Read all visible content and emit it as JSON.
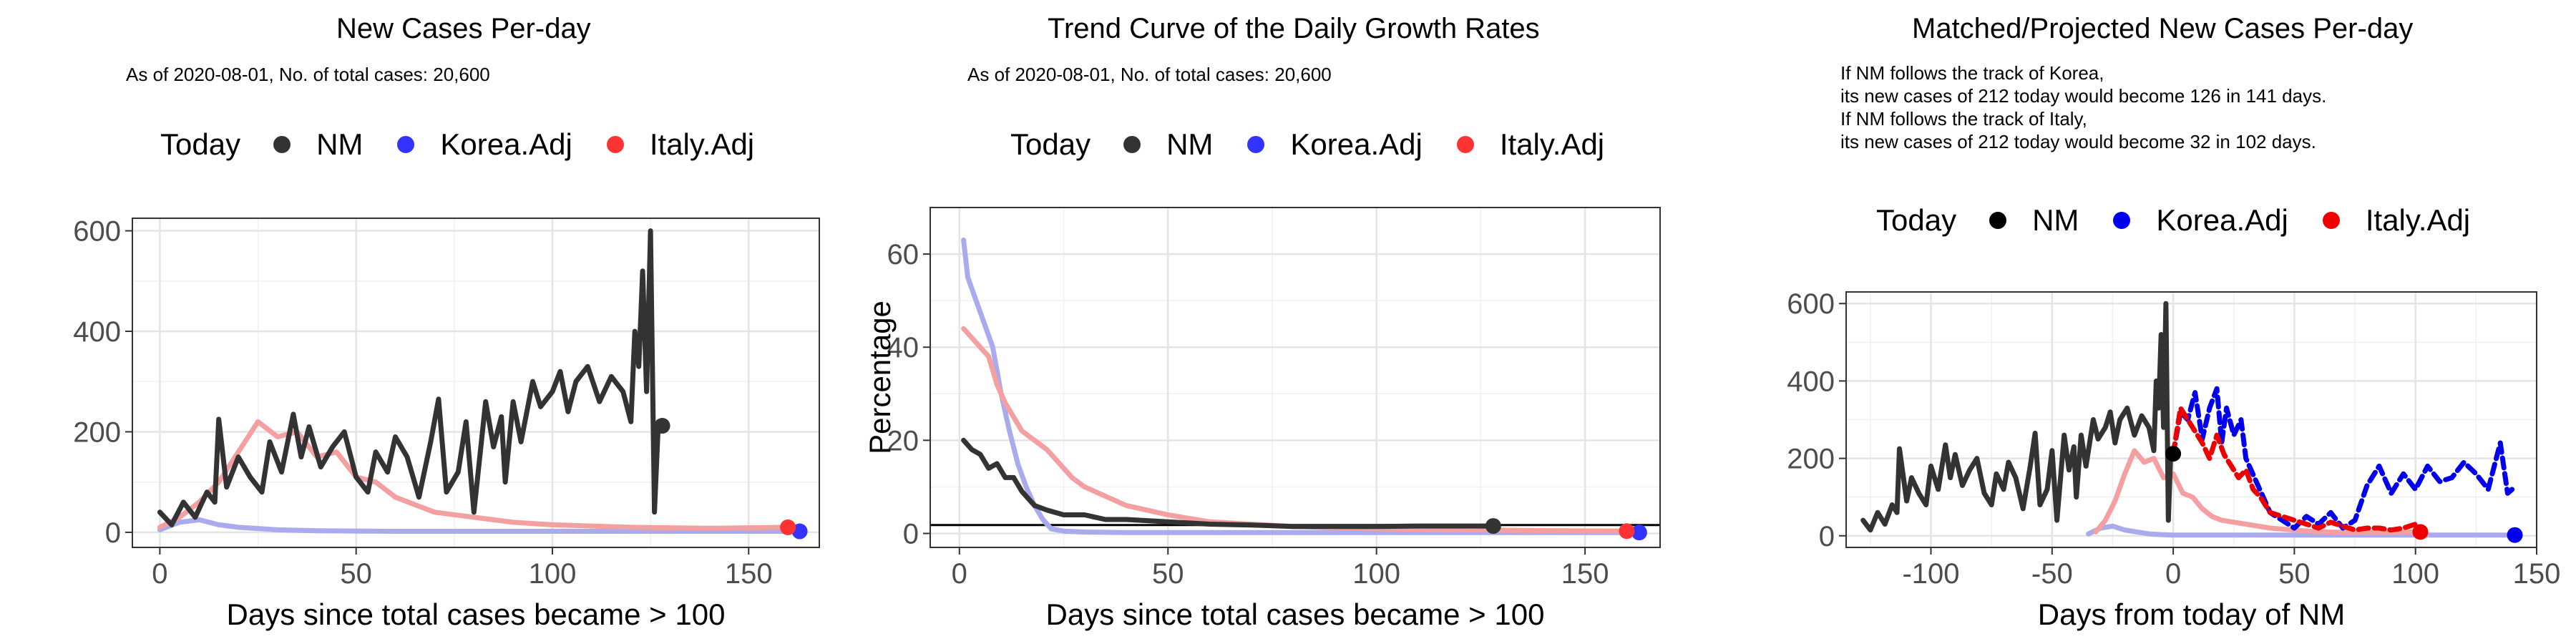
{
  "charts": [
    {
      "title": "New Cases Per-day",
      "subtitle": "As of 2020-08-01, No. of total cases: 20,600",
      "legend": {
        "title": "Today",
        "items": [
          {
            "label": "NM",
            "color": "#333333"
          },
          {
            "label": "Korea.Adj",
            "color": "#3333ff"
          },
          {
            "label": "Italy.Adj",
            "color": "#ff3333"
          }
        ]
      },
      "xlabel": "Days since total cases became > 100",
      "ylabel": "",
      "xticks": [
        0,
        50,
        100,
        150
      ],
      "yticks": [
        0,
        200,
        400,
        600
      ]
    },
    {
      "title": "Trend Curve of the Daily Growth Rates",
      "subtitle": "As of 2020-08-01, No. of total cases: 20,600",
      "legend": {
        "title": "Today",
        "items": [
          {
            "label": "NM",
            "color": "#333333"
          },
          {
            "label": "Korea.Adj",
            "color": "#3333ff"
          },
          {
            "label": "Italy.Adj",
            "color": "#ff3333"
          }
        ]
      },
      "xlabel": "Days since total cases became > 100",
      "ylabel": "Percentage",
      "xticks": [
        0,
        50,
        100,
        150
      ],
      "yticks": [
        0,
        20,
        40,
        60
      ]
    },
    {
      "title": "Matched/Projected New Cases Per-day",
      "subtitle": "If NM follows the track of Korea,\nits new cases of 212 today would become 126 in 141 days.\nIf NM follows the track of Italy,\nits new cases of 212 today would become 32 in 102 days.",
      "legend": {
        "title": "Today",
        "items": [
          {
            "label": "NM",
            "color": "#000000"
          },
          {
            "label": "Korea.Adj",
            "color": "#0000ee"
          },
          {
            "label": "Italy.Adj",
            "color": "#ee0000"
          }
        ]
      },
      "xlabel": "Days from today of NM",
      "ylabel": "",
      "xticks": [
        -100,
        -50,
        0,
        50,
        100,
        150
      ],
      "yticks": [
        0,
        200,
        400,
        600
      ]
    }
  ],
  "chart_data": [
    {
      "type": "line",
      "xlim": [
        -7,
        168
      ],
      "ylim": [
        -30,
        625
      ],
      "grid": true,
      "series": [
        {
          "name": "NM",
          "color": "#333333",
          "x": [
            0,
            3,
            6,
            9,
            12,
            14,
            15,
            17,
            20,
            23,
            26,
            28,
            31,
            34,
            36,
            38,
            41,
            44,
            47,
            50,
            53,
            55,
            58,
            60,
            63,
            66,
            69,
            71,
            73,
            76,
            78,
            80,
            83,
            85,
            87,
            88,
            90,
            92,
            95,
            97,
            100,
            102,
            104,
            106,
            109,
            112,
            115,
            118,
            120,
            121,
            122,
            123,
            124,
            125,
            126,
            127,
            128
          ],
          "y": [
            40,
            15,
            60,
            30,
            80,
            60,
            225,
            90,
            150,
            110,
            80,
            180,
            120,
            235,
            150,
            210,
            130,
            170,
            200,
            110,
            80,
            160,
            120,
            190,
            150,
            70,
            180,
            265,
            80,
            120,
            220,
            40,
            260,
            170,
            230,
            100,
            260,
            180,
            300,
            250,
            280,
            320,
            240,
            300,
            330,
            260,
            310,
            280,
            220,
            400,
            330,
            520,
            280,
            600,
            40,
            220,
            212
          ]
        },
        {
          "name": "Korea.Adj",
          "color": "#aaaaee",
          "x": [
            0,
            5,
            10,
            15,
            20,
            30,
            40,
            60,
            80,
            100,
            120,
            140,
            163
          ],
          "y": [
            5,
            20,
            25,
            15,
            10,
            5,
            3,
            2,
            2,
            2,
            2,
            2,
            2
          ]
        },
        {
          "name": "Italy.Adj",
          "color": "#f4a0a0",
          "x": [
            0,
            5,
            10,
            15,
            20,
            25,
            30,
            35,
            40,
            45,
            50,
            55,
            60,
            70,
            80,
            90,
            100,
            120,
            140,
            160
          ],
          "y": [
            10,
            30,
            60,
            100,
            160,
            220,
            190,
            200,
            150,
            160,
            110,
            100,
            70,
            40,
            30,
            20,
            15,
            10,
            8,
            10
          ]
        }
      ],
      "today_points": [
        {
          "name": "NM",
          "x": 128,
          "y": 212
        },
        {
          "name": "Korea.Adj",
          "x": 163,
          "y": 2
        },
        {
          "name": "Italy.Adj",
          "x": 160,
          "y": 10
        }
      ]
    },
    {
      "type": "line",
      "xlim": [
        -7,
        168
      ],
      "ylim": [
        -3,
        70
      ],
      "grid": true,
      "hline": 1.8,
      "series": [
        {
          "name": "NM",
          "color": "#333333",
          "x": [
            1,
            3,
            5,
            7,
            9,
            11,
            13,
            15,
            18,
            21,
            25,
            30,
            35,
            40,
            50,
            60,
            70,
            80,
            90,
            100,
            110,
            120,
            128
          ],
          "y": [
            20,
            18,
            17,
            14,
            15,
            12,
            12,
            9,
            6,
            5,
            4,
            4,
            3,
            3,
            2.5,
            2,
            1.8,
            1.5,
            1.5,
            1.5,
            1.6,
            1.6,
            1.6
          ]
        },
        {
          "name": "Korea.Adj",
          "color": "#aaaaee",
          "x": [
            1,
            2,
            4,
            6,
            8,
            10,
            12,
            14,
            16,
            18,
            20,
            22,
            25,
            30,
            40,
            60,
            80,
            100,
            120,
            140,
            163
          ],
          "y": [
            63,
            55,
            50,
            45,
            40,
            30,
            22,
            15,
            10,
            6,
            3,
            1,
            0.5,
            0.3,
            0.2,
            0.2,
            0.2,
            0.2,
            0.2,
            0.2,
            0.2
          ]
        },
        {
          "name": "Italy.Adj",
          "color": "#f4a0a0",
          "x": [
            1,
            3,
            5,
            7,
            9,
            11,
            13,
            15,
            18,
            21,
            24,
            27,
            30,
            35,
            40,
            45,
            50,
            60,
            70,
            80,
            100,
            120,
            140,
            160
          ],
          "y": [
            44,
            42,
            40,
            38,
            32,
            28,
            25,
            22,
            20,
            18,
            15,
            12,
            10,
            8,
            6,
            5,
            4,
            2.5,
            2,
            1.5,
            1,
            0.8,
            0.6,
            0.5
          ]
        }
      ],
      "today_points": [
        {
          "name": "NM",
          "x": 128,
          "y": 1.6
        },
        {
          "name": "Korea.Adj",
          "x": 163,
          "y": 0.2
        },
        {
          "name": "Italy.Adj",
          "x": 160,
          "y": 0.5
        }
      ]
    },
    {
      "type": "line",
      "xlim": [
        -135,
        150
      ],
      "ylim": [
        -30,
        630
      ],
      "grid": true,
      "series": [
        {
          "name": "NM",
          "color": "#333333",
          "x": [
            -128,
            -125,
            -122,
            -119,
            -116,
            -114,
            -113,
            -110,
            -108,
            -105,
            -102,
            -100,
            -97,
            -94,
            -92,
            -90,
            -87,
            -84,
            -81,
            -78,
            -75,
            -73,
            -70,
            -68,
            -65,
            -62,
            -59,
            -57,
            -55,
            -52,
            -50,
            -48,
            -45,
            -43,
            -41,
            -40,
            -38,
            -36,
            -33,
            -31,
            -28,
            -26,
            -24,
            -22,
            -19,
            -16,
            -13,
            -10,
            -8,
            -7,
            -6,
            -5,
            -4,
            -3,
            -2,
            -1,
            0
          ],
          "y": [
            40,
            15,
            60,
            30,
            80,
            60,
            225,
            90,
            150,
            110,
            80,
            180,
            120,
            235,
            150,
            210,
            130,
            170,
            200,
            110,
            80,
            160,
            120,
            190,
            150,
            70,
            180,
            265,
            80,
            120,
            220,
            40,
            260,
            170,
            230,
            100,
            260,
            180,
            300,
            250,
            280,
            320,
            240,
            300,
            330,
            260,
            310,
            280,
            220,
            400,
            330,
            520,
            280,
            600,
            40,
            220,
            212
          ]
        },
        {
          "name": "Korea.Adj",
          "color": "#0000ee",
          "dashed": true,
          "x": [
            0,
            3,
            6,
            9,
            12,
            15,
            18,
            20,
            22,
            25,
            28,
            30,
            35,
            40,
            45,
            50,
            55,
            60,
            65,
            70,
            75,
            80,
            85,
            90,
            95,
            100,
            105,
            110,
            115,
            120,
            125,
            130,
            135,
            138,
            141
          ],
          "y": [
            212,
            320,
            300,
            370,
            250,
            330,
            380,
            240,
            330,
            260,
            300,
            200,
            130,
            60,
            40,
            20,
            50,
            30,
            60,
            20,
            40,
            130,
            180,
            110,
            160,
            120,
            180,
            140,
            150,
            190,
            160,
            120,
            240,
            110,
            126
          ]
        },
        {
          "name": "Italy.Adj",
          "color": "#ee0000",
          "dashed": true,
          "x": [
            0,
            3,
            6,
            9,
            12,
            15,
            18,
            21,
            24,
            27,
            30,
            33,
            36,
            40,
            45,
            50,
            55,
            60,
            65,
            70,
            75,
            80,
            85,
            90,
            95,
            100,
            102
          ],
          "y": [
            212,
            330,
            300,
            270,
            240,
            200,
            260,
            210,
            180,
            150,
            170,
            120,
            100,
            60,
            50,
            40,
            30,
            20,
            35,
            25,
            15,
            20,
            20,
            15,
            20,
            30,
            32
          ]
        },
        {
          "name": "Korea.Adj",
          "color": "#aaaaee",
          "x": [
            -35,
            -30,
            -25,
            -20,
            -15,
            -10,
            -5,
            0,
            20,
            40,
            60,
            80,
            100,
            120,
            140
          ],
          "y": [
            5,
            20,
            25,
            15,
            10,
            5,
            3,
            2,
            2,
            2,
            2,
            2,
            2,
            2,
            2
          ]
        },
        {
          "name": "Italy.Adj",
          "color": "#f4a0a0",
          "x": [
            -32,
            -28,
            -24,
            -20,
            -16,
            -12,
            -8,
            -4,
            0,
            4,
            8,
            12,
            16,
            20,
            30,
            40,
            50,
            60,
            80,
            100
          ],
          "y": [
            10,
            40,
            90,
            160,
            220,
            190,
            200,
            150,
            160,
            110,
            100,
            70,
            50,
            40,
            30,
            20,
            15,
            10,
            8,
            10
          ]
        }
      ],
      "today_points": [
        {
          "name": "NM",
          "x": 0,
          "y": 212
        },
        {
          "name": "Korea.Adj",
          "x": 141,
          "y": 2
        },
        {
          "name": "Italy.Adj",
          "x": 102,
          "y": 10
        }
      ]
    }
  ]
}
